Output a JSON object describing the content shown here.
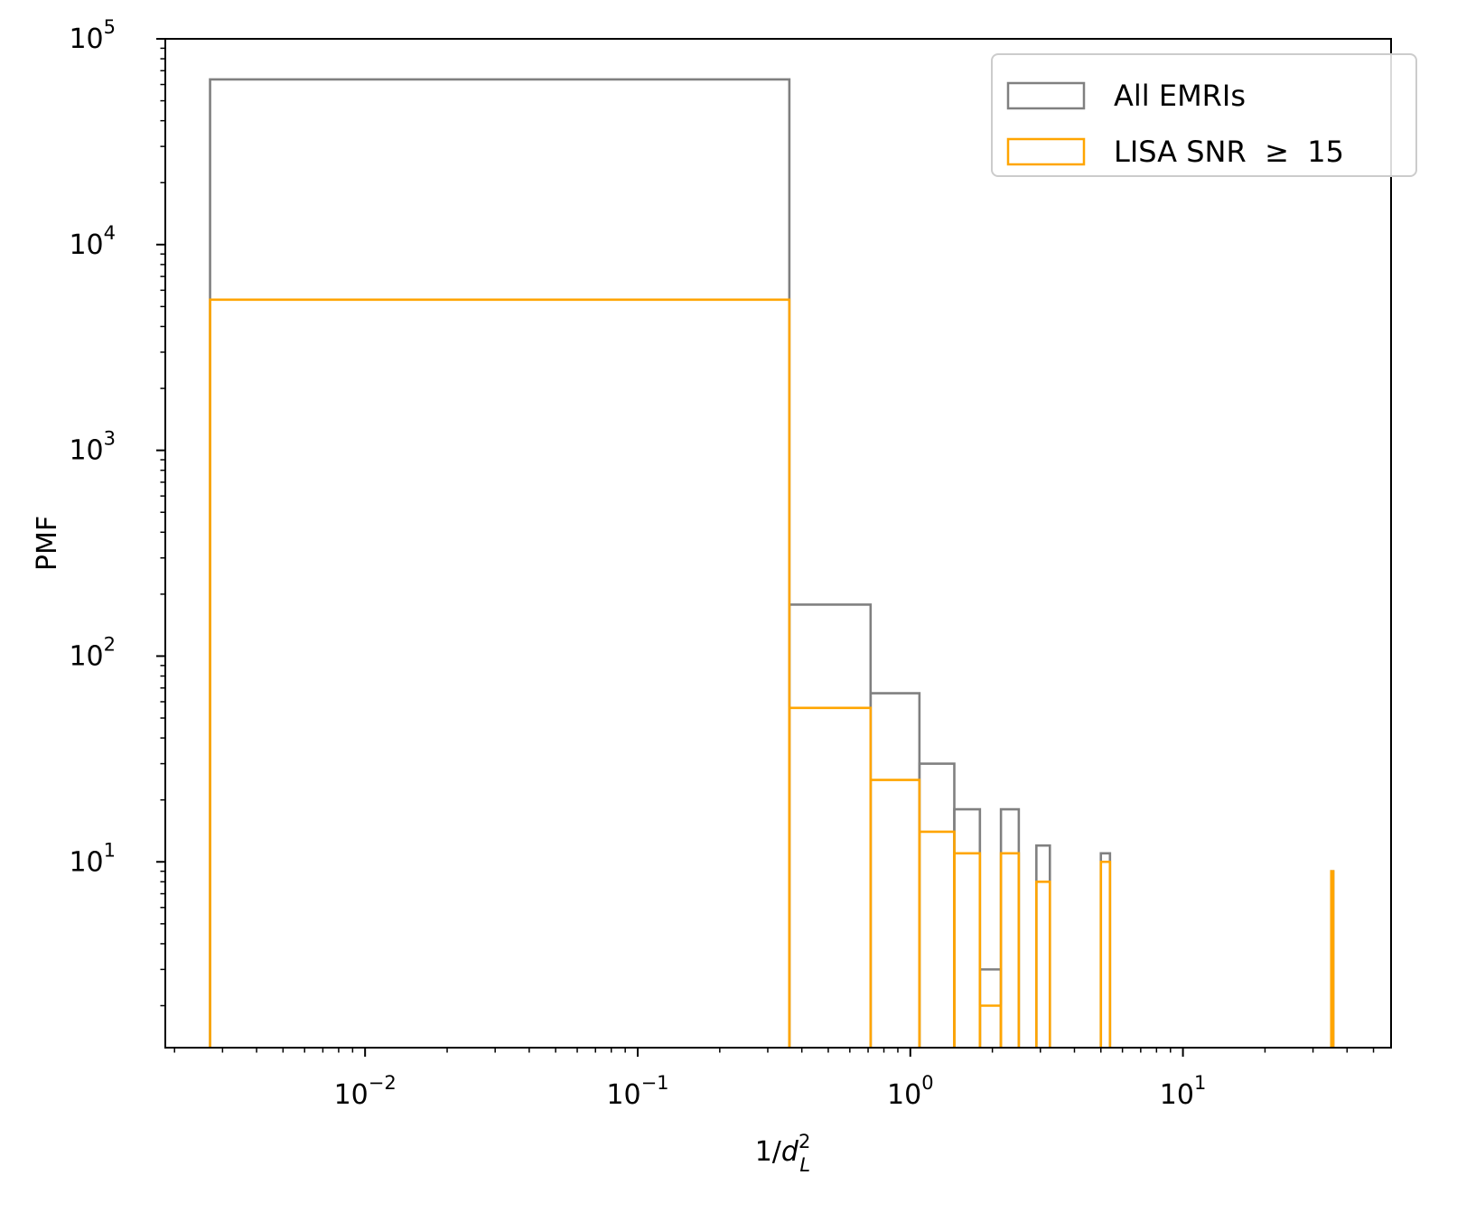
{
  "chart_data": {
    "type": "histogram",
    "xscale": "log",
    "yscale": "log",
    "xlim": [
      0.00185,
      58
    ],
    "ylim": [
      1.25,
      100000
    ],
    "xlabel": {
      "base": "1/",
      "var": "d",
      "sub": "L",
      "sup": "2"
    },
    "ylabel": "PMF",
    "legend_position": "upper right",
    "x_ticks": [
      {
        "value": 0.01,
        "exp": "−2"
      },
      {
        "value": 0.1,
        "exp": "−1"
      },
      {
        "value": 1,
        "exp": "0"
      },
      {
        "value": 10,
        "exp": "1"
      }
    ],
    "y_ticks": [
      {
        "value": 10,
        "exp": "1"
      },
      {
        "value": 100,
        "exp": "2"
      },
      {
        "value": 1000,
        "exp": "3"
      },
      {
        "value": 10000,
        "exp": "4"
      },
      {
        "value": 100000,
        "exp": "5"
      }
    ],
    "tick_base": "10",
    "series": [
      {
        "name": "All EMRIs",
        "color": "#808080",
        "bins": [
          {
            "x0": 0.0027,
            "x1": 0.36,
            "y": 63500
          },
          {
            "x0": 0.36,
            "x1": 0.715,
            "y": 178
          },
          {
            "x0": 0.715,
            "x1": 1.08,
            "y": 66
          },
          {
            "x0": 1.08,
            "x1": 1.45,
            "y": 30
          },
          {
            "x0": 1.45,
            "x1": 1.8,
            "y": 18
          },
          {
            "x0": 1.8,
            "x1": 2.15,
            "y": 3
          },
          {
            "x0": 2.15,
            "x1": 2.5,
            "y": 18
          },
          {
            "x0": 2.9,
            "x1": 3.25,
            "y": 12
          },
          {
            "x0": 5.0,
            "x1": 5.4,
            "y": 11
          },
          {
            "x0": 35.0,
            "x1": 35.6,
            "y": 9
          }
        ]
      },
      {
        "name": "LISA SNR  ≥  15",
        "color": "#ffa500",
        "bins": [
          {
            "x0": 0.0027,
            "x1": 0.36,
            "y": 5400
          },
          {
            "x0": 0.36,
            "x1": 0.715,
            "y": 56
          },
          {
            "x0": 0.715,
            "x1": 1.08,
            "y": 25
          },
          {
            "x0": 1.08,
            "x1": 1.45,
            "y": 14
          },
          {
            "x0": 1.45,
            "x1": 1.8,
            "y": 11
          },
          {
            "x0": 1.8,
            "x1": 2.15,
            "y": 2
          },
          {
            "x0": 2.15,
            "x1": 2.5,
            "y": 11
          },
          {
            "x0": 2.9,
            "x1": 3.25,
            "y": 8
          },
          {
            "x0": 5.0,
            "x1": 5.4,
            "y": 10
          },
          {
            "x0": 35.0,
            "x1": 35.6,
            "y": 9
          }
        ]
      }
    ]
  }
}
